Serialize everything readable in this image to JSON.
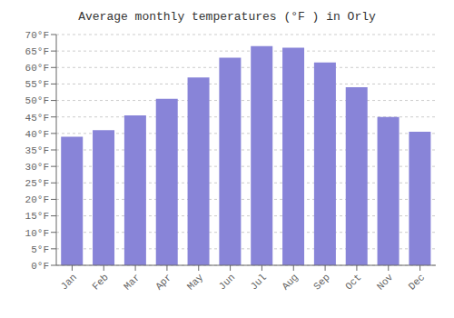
{
  "chart_data": {
    "type": "bar",
    "title": "Average monthly temperatures (°F ) in Orly",
    "categories": [
      "Jan",
      "Feb",
      "Mar",
      "Apr",
      "May",
      "Jun",
      "Jul",
      "Aug",
      "Sep",
      "Oct",
      "Nov",
      "Dec"
    ],
    "values": [
      39,
      41,
      45.5,
      50.5,
      57,
      63,
      66.5,
      66,
      61.5,
      54,
      45,
      40.5
    ],
    "ylim": [
      0,
      70
    ],
    "yticks": [
      {
        "value": 0,
        "label": "0°F"
      },
      {
        "value": 5,
        "label": "5°F"
      },
      {
        "value": 10,
        "label": "10°F"
      },
      {
        "value": 15,
        "label": "15°F"
      },
      {
        "value": 20,
        "label": "20°F"
      },
      {
        "value": 25,
        "label": "25°F"
      },
      {
        "value": 30,
        "label": "30°F"
      },
      {
        "value": 35,
        "label": "35°F"
      },
      {
        "value": 40,
        "label": "40°F"
      },
      {
        "value": 45,
        "label": "45°F"
      },
      {
        "value": 50,
        "label": "50°F"
      },
      {
        "value": 55,
        "label": "55°F"
      },
      {
        "value": 60,
        "label": "60°F"
      },
      {
        "value": 65,
        "label": "65°F"
      },
      {
        "value": 70,
        "label": "70°F"
      }
    ],
    "grid": true
  }
}
